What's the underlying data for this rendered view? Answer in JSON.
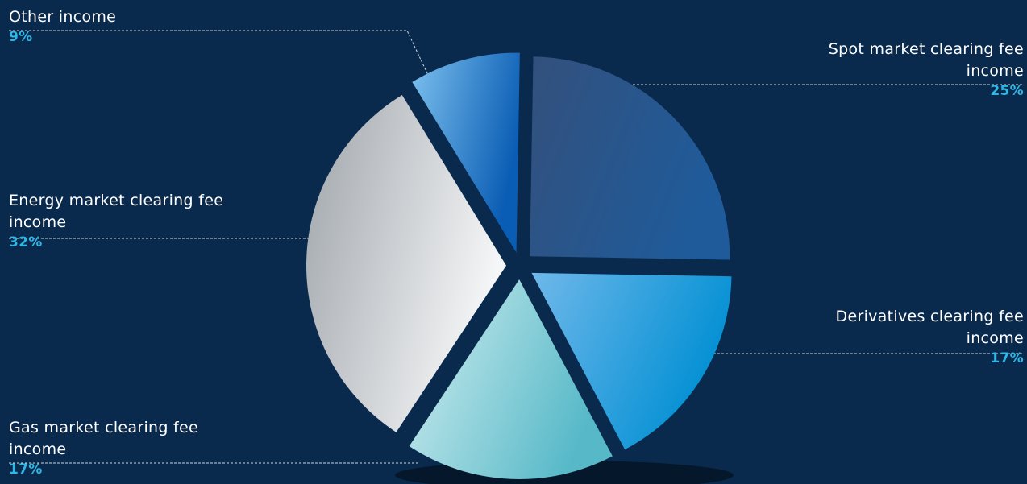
{
  "colors": {
    "background": "#0a2a4d",
    "percent_text": "#2fb7e6",
    "label_text": "#ffffff",
    "leader_line": "#c9d3dd"
  },
  "chart_data": {
    "type": "pie",
    "title": "",
    "exploded": true,
    "slices": [
      {
        "label": "Spot market clearing fee income",
        "label_lines": [
          "Spot market clearing fee",
          "income"
        ],
        "value": 25,
        "percent_text": "25%",
        "gradient": [
          "#33507c",
          "#1f5b9a"
        ]
      },
      {
        "label": "Derivatives clearing fee income",
        "label_lines": [
          "Derivatives clearing fee",
          "income"
        ],
        "value": 17,
        "percent_text": "17%",
        "gradient": [
          "#6fb8ea",
          "#008fd3"
        ]
      },
      {
        "label": "Gas market clearing fee income",
        "label_lines": [
          "Gas market clearing fee",
          "income"
        ],
        "value": 17,
        "percent_text": "17%",
        "gradient": [
          "#d2eef0",
          "#57b9c8"
        ]
      },
      {
        "label": "Energy market clearing fee income",
        "label_lines": [
          "Energy market clearing fee",
          "income"
        ],
        "value": 32,
        "percent_text": "32%",
        "gradient": [
          "#9ea4aa",
          "#f5f6f7"
        ]
      },
      {
        "label": "Other income",
        "label_lines": [
          "Other income"
        ],
        "value": 9,
        "percent_text": "9%",
        "gradient": [
          "#7cc0ee",
          "#0a5db4"
        ]
      }
    ]
  }
}
